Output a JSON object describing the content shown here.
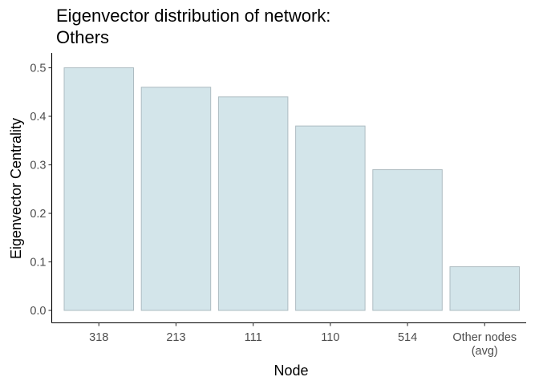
{
  "chart_data": {
    "type": "bar",
    "title": [
      "Eigenvector distribution of network:",
      "Others"
    ],
    "xlabel": "Node",
    "ylabel": "Eigenvector Centrality",
    "categories": [
      [
        "318"
      ],
      [
        "213"
      ],
      [
        "111"
      ],
      [
        "110"
      ],
      [
        "514"
      ],
      [
        "Other nodes",
        "(avg)"
      ]
    ],
    "values": [
      0.5,
      0.46,
      0.44,
      0.38,
      0.29,
      0.09
    ],
    "y_ticks": [
      0.0,
      0.1,
      0.2,
      0.3,
      0.4,
      0.5
    ],
    "y_tick_labels": [
      "0.0",
      "0.1",
      "0.2",
      "0.3",
      "0.4",
      "0.5"
    ],
    "ylim": [
      0,
      0.5
    ],
    "grid": false,
    "legend": "none",
    "bar_fill": "#d3e5ea",
    "bar_stroke": "#aebcc2",
    "axis_color": "#000000",
    "tick_label_color": "#4d4d4d"
  }
}
